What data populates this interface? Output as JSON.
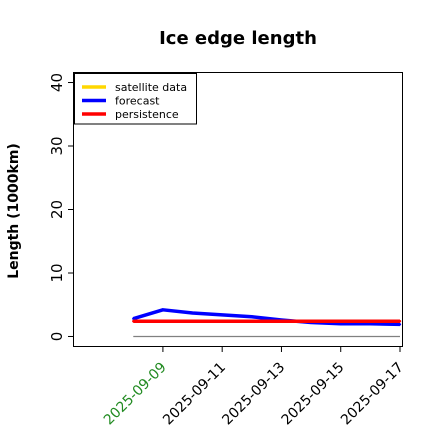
{
  "chart_data": {
    "type": "line",
    "title": "Ice edge length",
    "ylabel": "Length (1000km)",
    "xlabel": "",
    "x_tick_labels": [
      "2025-09-09",
      "2025-09-11",
      "2025-09-13",
      "2025-09-15",
      "2025-09-17"
    ],
    "x_tick_colors": [
      "#228b22",
      "#000000",
      "#000000",
      "#000000",
      "#000000"
    ],
    "x_range": [
      "2025-09-06",
      "2025-09-17"
    ],
    "ylim": [
      -1.5,
      41.5
    ],
    "y_ticks": [
      0,
      10,
      20,
      30,
      40
    ],
    "grid": false,
    "legend_position": "top-left",
    "series": [
      {
        "name": "satellite data",
        "color": "#FFD700",
        "x": [],
        "values": []
      },
      {
        "name": "forecast",
        "color": "#0000FF",
        "x": [
          "2025-09-08",
          "2025-09-09",
          "2025-09-10",
          "2025-09-11",
          "2025-09-12",
          "2025-09-13",
          "2025-09-14",
          "2025-09-15",
          "2025-09-16",
          "2025-09-17"
        ],
        "values": [
          2.8,
          4.2,
          3.7,
          3.4,
          3.1,
          2.6,
          2.2,
          2.0,
          2.0,
          1.9
        ]
      },
      {
        "name": "persistence",
        "color": "#FF0000",
        "x": [
          "2025-09-08",
          "2025-09-17"
        ],
        "values": [
          2.4,
          2.4
        ]
      }
    ],
    "reference_line": {
      "color": "#808080",
      "x": [
        "2025-09-08",
        "2025-09-17"
      ],
      "values": [
        0,
        0
      ]
    }
  }
}
